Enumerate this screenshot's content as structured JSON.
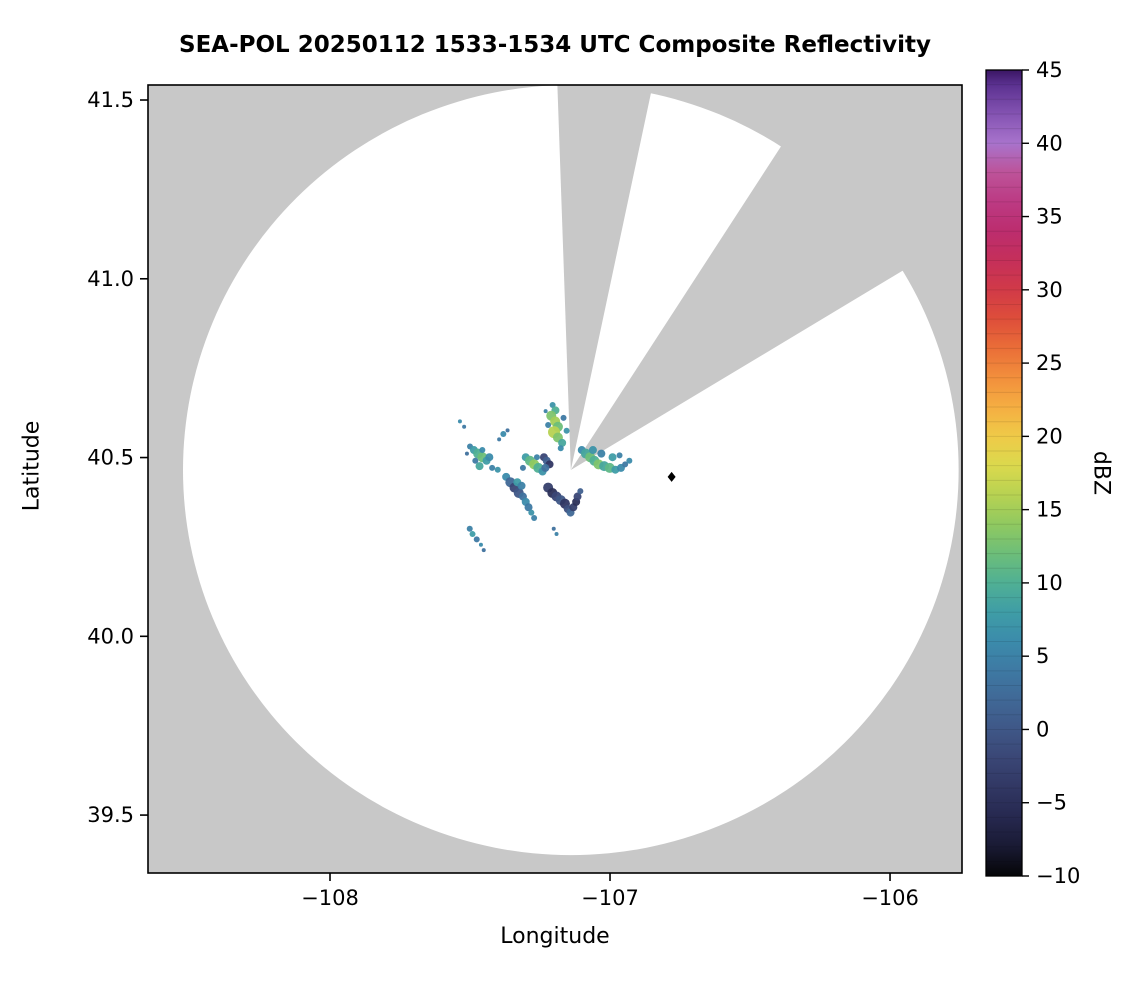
{
  "chart_data": {
    "type": "radar_ppi_map",
    "title": "SEA-POL 20250112 1533-1534 UTC Composite Reflectivity",
    "xlabel": "Longitude",
    "ylabel": "Latitude",
    "colorbar_label": "dBZ",
    "xlim": [
      -108.65,
      -105.743
    ],
    "ylim": [
      39.338,
      41.542
    ],
    "xticks": [
      -108,
      -107,
      -106
    ],
    "xtick_labels": [
      "−108",
      "−107",
      "−106"
    ],
    "yticks": [
      39.5,
      40.0,
      40.5,
      41.0,
      41.5
    ],
    "ytick_labels": [
      "39.5",
      "40.0",
      "40.5",
      "41.0",
      "41.5"
    ],
    "grid": false,
    "background_outside_scan_color": "#c8c8c8",
    "scan_area_color": "#ffffff",
    "radar": {
      "center_lon": -107.14,
      "center_lat": 40.465,
      "radius_lon_deg": 1.385,
      "radius_lat_deg": 1.077
    },
    "blocked_sectors_azimuth_deg": [
      [
        -2,
        12
      ],
      [
        33,
        59
      ]
    ],
    "marker": {
      "lon": -106.78,
      "lat": 40.446,
      "shape": "diamond",
      "color": "#000000"
    },
    "colorbar": {
      "min": -10,
      "max": 45,
      "ticks": [
        45,
        40,
        35,
        30,
        25,
        20,
        15,
        10,
        5,
        0,
        -5,
        -10
      ],
      "tick_labels": [
        "45",
        "40",
        "35",
        "30",
        "25",
        "20",
        "15",
        "10",
        "5",
        "0",
        "−5",
        "−10"
      ],
      "stops": [
        [
          -10,
          "#050507"
        ],
        [
          -8,
          "#191a33"
        ],
        [
          -6,
          "#26284f"
        ],
        [
          -4,
          "#313763"
        ],
        [
          -2,
          "#3a4675"
        ],
        [
          0,
          "#3f5787"
        ],
        [
          2,
          "#406896"
        ],
        [
          4,
          "#3e79a3"
        ],
        [
          6,
          "#3b8bab"
        ],
        [
          8,
          "#3f9da6"
        ],
        [
          10,
          "#50b094"
        ],
        [
          12,
          "#6dbe79"
        ],
        [
          14,
          "#90c960"
        ],
        [
          16,
          "#b7d252"
        ],
        [
          18,
          "#dbd94d"
        ],
        [
          20,
          "#efca48"
        ],
        [
          22,
          "#f5ae42"
        ],
        [
          24,
          "#f28f3c"
        ],
        [
          26,
          "#ea6e38"
        ],
        [
          28,
          "#de4e3a"
        ],
        [
          30,
          "#d13a48"
        ],
        [
          32,
          "#c52f5a"
        ],
        [
          34,
          "#bc2d6e"
        ],
        [
          36,
          "#bc3a83"
        ],
        [
          38,
          "#bd5399"
        ],
        [
          40,
          "#a873cc"
        ],
        [
          42,
          "#8453b2"
        ],
        [
          44,
          "#5b3190"
        ],
        [
          45,
          "#3a1663"
        ]
      ]
    },
    "echoes": {
      "format": [
        "lon",
        "lat",
        "dbz",
        "radius_px"
      ],
      "points": [
        [
          -107.205,
          40.647,
          7,
          3
        ],
        [
          -107.195,
          40.632,
          10,
          4
        ],
        [
          -107.21,
          40.617,
          13,
          5
        ],
        [
          -107.196,
          40.601,
          15,
          5
        ],
        [
          -107.186,
          40.586,
          12,
          5
        ],
        [
          -107.2,
          40.571,
          16,
          6
        ],
        [
          -107.186,
          40.556,
          13,
          5
        ],
        [
          -107.171,
          40.541,
          9,
          4
        ],
        [
          -107.176,
          40.526,
          6,
          3
        ],
        [
          -107.221,
          40.591,
          5,
          3
        ],
        [
          -107.166,
          40.611,
          4,
          3
        ],
        [
          -107.23,
          40.63,
          5,
          2
        ],
        [
          -107.155,
          40.575,
          7,
          3
        ],
        [
          -107.5,
          40.531,
          5,
          3
        ],
        [
          -107.486,
          40.521,
          8,
          4
        ],
        [
          -107.471,
          40.511,
          10,
          5
        ],
        [
          -107.456,
          40.501,
          12,
          5
        ],
        [
          -107.441,
          40.491,
          8,
          4
        ],
        [
          -107.431,
          40.501,
          6,
          4
        ],
        [
          -107.456,
          40.521,
          6,
          3
        ],
        [
          -107.421,
          40.471,
          5,
          3
        ],
        [
          -107.401,
          40.466,
          7,
          3
        ],
        [
          -107.466,
          40.476,
          9,
          4
        ],
        [
          -107.481,
          40.491,
          4,
          3
        ],
        [
          -107.511,
          40.511,
          3,
          2
        ],
        [
          -107.536,
          40.601,
          6,
          2
        ],
        [
          -107.521,
          40.586,
          4,
          2
        ],
        [
          -107.371,
          40.446,
          6,
          4
        ],
        [
          -107.356,
          40.431,
          2,
          5
        ],
        [
          -107.341,
          40.416,
          -2,
          5
        ],
        [
          -107.326,
          40.401,
          0,
          5
        ],
        [
          -107.311,
          40.391,
          3,
          4
        ],
        [
          -107.301,
          40.376,
          6,
          4
        ],
        [
          -107.291,
          40.361,
          4,
          4
        ],
        [
          -107.331,
          40.431,
          8,
          4
        ],
        [
          -107.316,
          40.421,
          5,
          4
        ],
        [
          -107.281,
          40.346,
          7,
          3
        ],
        [
          -107.271,
          40.331,
          5,
          3
        ],
        [
          -107.221,
          40.416,
          -3,
          5
        ],
        [
          -107.206,
          40.401,
          -5,
          5
        ],
        [
          -107.191,
          40.391,
          -2,
          5
        ],
        [
          -107.176,
          40.381,
          0,
          5
        ],
        [
          -107.161,
          40.371,
          -4,
          5
        ],
        [
          -107.151,
          40.356,
          -1,
          4
        ],
        [
          -107.141,
          40.346,
          2,
          4
        ],
        [
          -107.131,
          40.361,
          -3,
          4
        ],
        [
          -107.121,
          40.376,
          -5,
          4
        ],
        [
          -107.116,
          40.391,
          -2,
          4
        ],
        [
          -107.106,
          40.406,
          1,
          3
        ],
        [
          -107.101,
          40.521,
          6,
          4
        ],
        [
          -107.086,
          40.511,
          9,
          5
        ],
        [
          -107.071,
          40.501,
          12,
          5
        ],
        [
          -107.056,
          40.491,
          10,
          5
        ],
        [
          -107.041,
          40.481,
          13,
          5
        ],
        [
          -107.021,
          40.476,
          9,
          5
        ],
        [
          -107.001,
          40.471,
          11,
          5
        ],
        [
          -106.981,
          40.466,
          8,
          4
        ],
        [
          -106.961,
          40.471,
          6,
          4
        ],
        [
          -106.946,
          40.481,
          4,
          3
        ],
        [
          -106.931,
          40.491,
          6,
          3
        ],
        [
          -107.061,
          40.521,
          7,
          4
        ],
        [
          -107.031,
          40.511,
          5,
          4
        ],
        [
          -106.991,
          40.501,
          8,
          4
        ],
        [
          -106.966,
          40.506,
          5,
          3
        ],
        [
          -107.301,
          40.501,
          8,
          4
        ],
        [
          -107.286,
          40.491,
          11,
          5
        ],
        [
          -107.271,
          40.481,
          14,
          5
        ],
        [
          -107.256,
          40.471,
          10,
          5
        ],
        [
          -107.241,
          40.461,
          7,
          4
        ],
        [
          -107.261,
          40.501,
          5,
          3
        ],
        [
          -107.311,
          40.471,
          4,
          3
        ],
        [
          -107.236,
          40.501,
          -2,
          4
        ],
        [
          -107.226,
          40.491,
          1,
          4
        ],
        [
          -107.216,
          40.481,
          -4,
          4
        ],
        [
          -107.231,
          40.471,
          3,
          4
        ],
        [
          -107.501,
          40.301,
          5,
          3
        ],
        [
          -107.491,
          40.286,
          8,
          3
        ],
        [
          -107.476,
          40.271,
          4,
          3
        ],
        [
          -107.461,
          40.256,
          6,
          2
        ],
        [
          -107.451,
          40.241,
          3,
          2
        ],
        [
          -107.201,
          40.301,
          3,
          2
        ],
        [
          -107.191,
          40.286,
          5,
          2
        ],
        [
          -107.381,
          40.566,
          6,
          3
        ],
        [
          -107.396,
          40.551,
          4,
          2
        ],
        [
          -107.366,
          40.576,
          3,
          2
        ]
      ]
    }
  }
}
